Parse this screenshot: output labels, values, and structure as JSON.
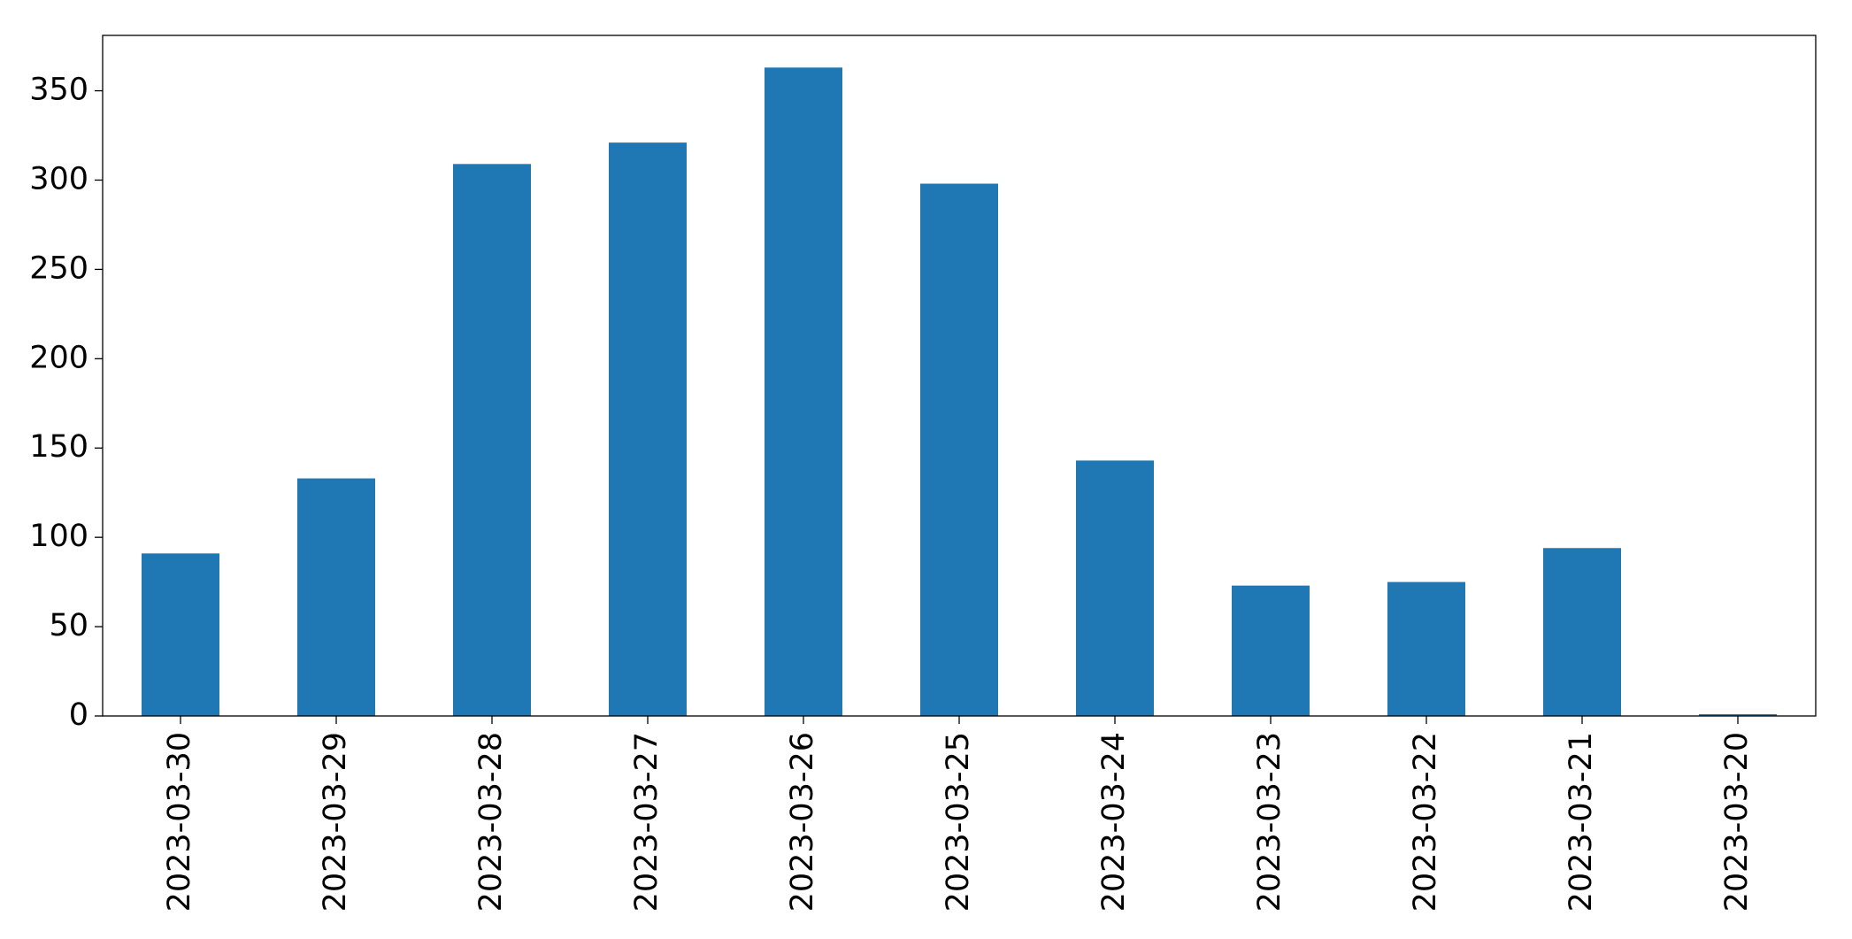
{
  "chart_data": {
    "type": "bar",
    "categories": [
      "2023-03-30",
      "2023-03-29",
      "2023-03-28",
      "2023-03-27",
      "2023-03-26",
      "2023-03-25",
      "2023-03-24",
      "2023-03-23",
      "2023-03-22",
      "2023-03-21",
      "2023-03-20"
    ],
    "values": [
      91,
      133,
      309,
      321,
      363,
      298,
      143,
      73,
      75,
      94,
      1
    ],
    "color": "#1f77b4",
    "ylim": [
      0,
      381
    ],
    "yticks": [
      0,
      50,
      100,
      150,
      200,
      250,
      300,
      350
    ],
    "grid": false
  }
}
